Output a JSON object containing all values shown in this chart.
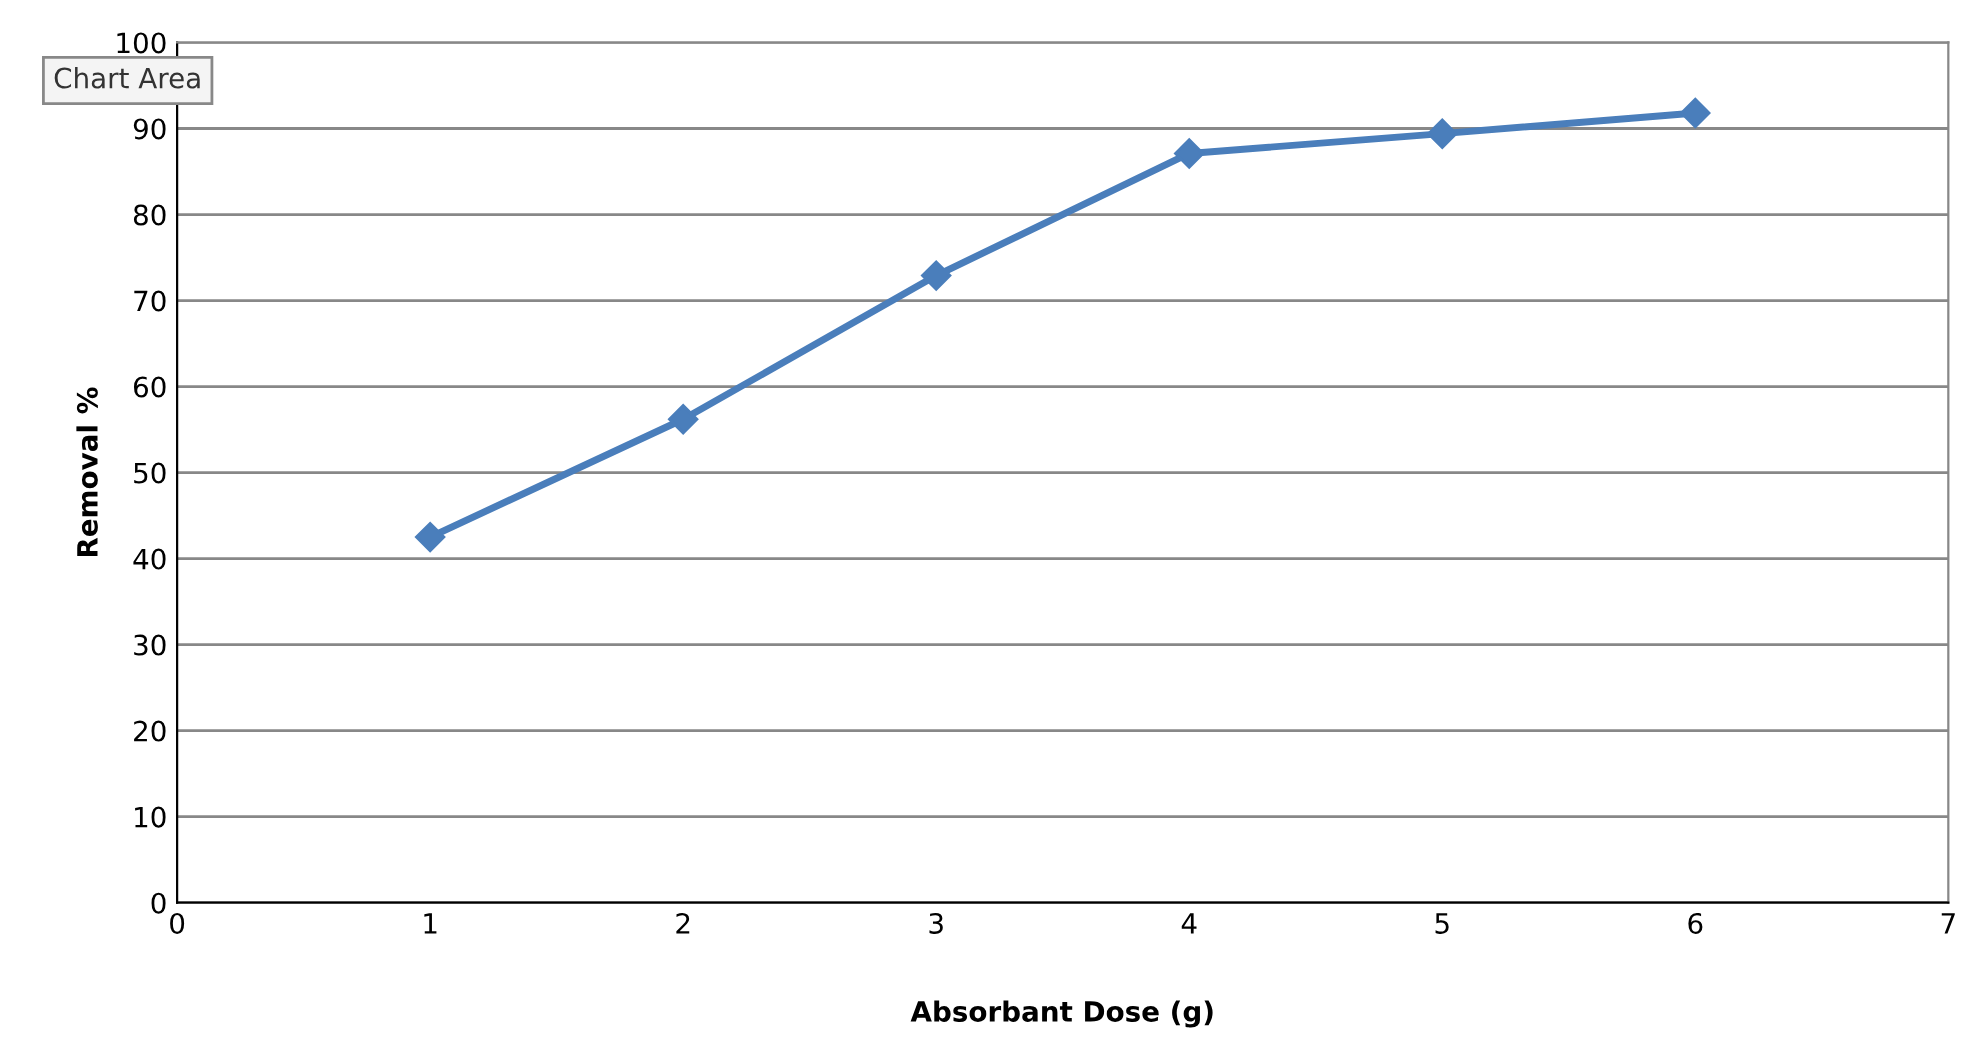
{
  "chart_data": {
    "type": "line",
    "xlabel": "Absorbant Dose (g)",
    "ylabel": "Removal %",
    "x": [
      1,
      2,
      3,
      4,
      5,
      6
    ],
    "series": [
      {
        "color": "#4a7ebb",
        "values": [
          42.5,
          56.2,
          72.9,
          87.1,
          89.4,
          91.8
        ]
      }
    ],
    "xlim": [
      0,
      7
    ],
    "xticks": [
      0,
      1,
      2,
      3,
      4,
      5,
      6,
      7
    ],
    "ylim": [
      0,
      100
    ],
    "yticks": [
      0,
      10,
      20,
      30,
      40,
      50,
      60,
      70,
      80,
      90,
      100
    ],
    "grid": "y",
    "marker": "diamond",
    "line_style": "solid",
    "annotations": [
      "Chart Area"
    ]
  }
}
